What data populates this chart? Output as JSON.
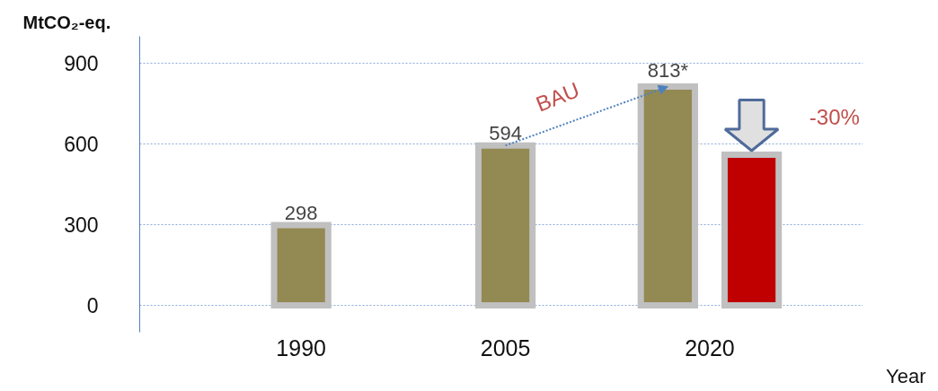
{
  "chart_data": {
    "type": "bar",
    "ylabel": "MtCO₂-eq.",
    "xlabel": "Year",
    "categories": [
      "1990",
      "2005",
      "2020"
    ],
    "series": [
      {
        "color": "#938953",
        "values": [
          298,
          594,
          813
        ],
        "value_labels": [
          "298",
          "594",
          "813*"
        ]
      },
      {
        "color": "#c00000",
        "values": [
          null,
          null,
          560
        ]
      }
    ],
    "ylim": [
      -100,
      1000
    ],
    "yticks": [
      0,
      300,
      600,
      900
    ],
    "grid": "y",
    "annotations": [
      "BAU",
      "-30%"
    ]
  }
}
